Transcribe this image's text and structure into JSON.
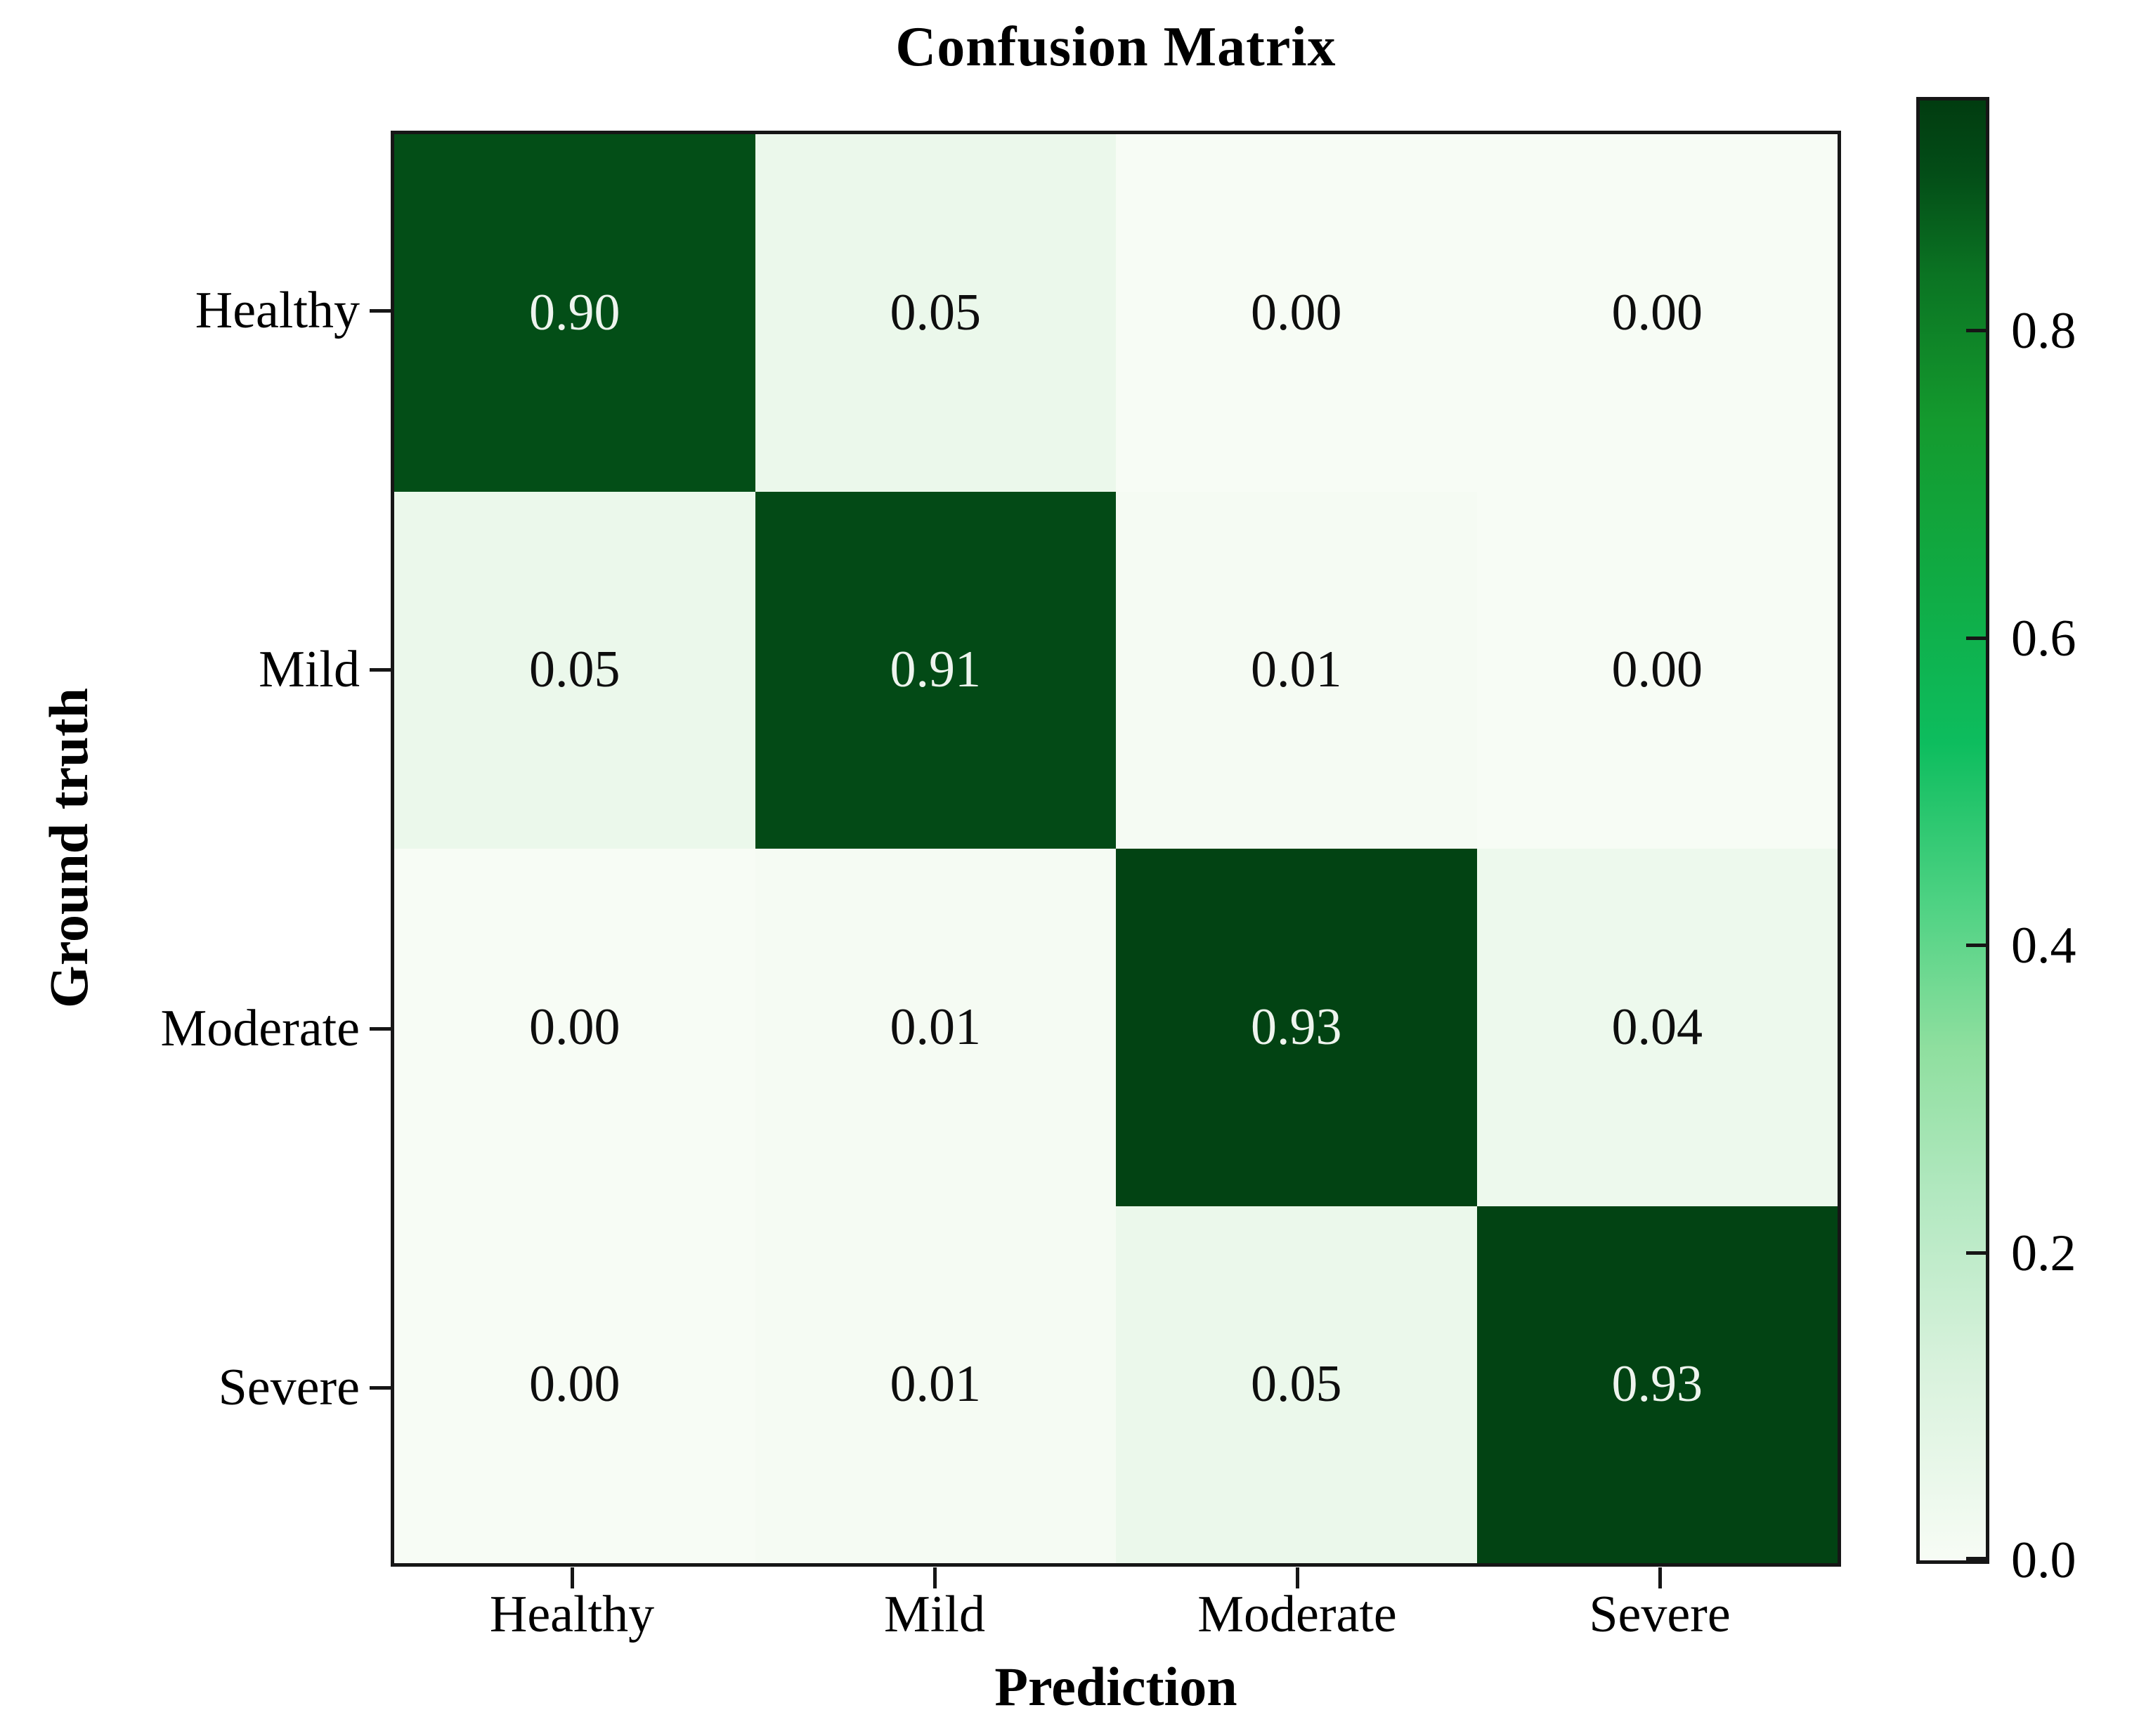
{
  "title": "Confusion Matrix",
  "chart_data": {
    "type": "heatmap",
    "title": "Confusion Matrix",
    "xlabel": "Prediction",
    "ylabel": "Ground truth",
    "x_categories": [
      "Healthy",
      "Mild",
      "Moderate",
      "Severe"
    ],
    "y_categories": [
      "Healthy",
      "Mild",
      "Moderate",
      "Severe"
    ],
    "matrix": [
      [
        0.9,
        0.05,
        0.0,
        0.0
      ],
      [
        0.05,
        0.91,
        0.01,
        0.0
      ],
      [
        0.0,
        0.01,
        0.93,
        0.04
      ],
      [
        0.0,
        0.01,
        0.05,
        0.93
      ]
    ],
    "value_decimals": 2,
    "vmax": 0.95,
    "grid": false,
    "colorbar": {
      "position": "right",
      "ticks": [
        0.0,
        0.2,
        0.4,
        0.6,
        0.8
      ],
      "tick_decimals": 1,
      "range": [
        0.0,
        0.95
      ]
    },
    "colormap": {
      "name": "white-to-dark-green",
      "stops": [
        {
          "t": 0.0,
          "c": "#f7fcf5"
        },
        {
          "t": 0.13,
          "c": "#d9f2dd"
        },
        {
          "t": 0.25,
          "c": "#b2e8c0"
        },
        {
          "t": 0.35,
          "c": "#8fdf9f"
        },
        {
          "t": 0.45,
          "c": "#4ed283"
        },
        {
          "t": 0.56,
          "c": "#0dbd5e"
        },
        {
          "t": 0.67,
          "c": "#10ab44"
        },
        {
          "t": 0.78,
          "c": "#149a2e"
        },
        {
          "t": 0.88,
          "c": "#0b7423"
        },
        {
          "t": 0.95,
          "c": "#034d17"
        },
        {
          "t": 1.0,
          "c": "#013c10"
        }
      ]
    }
  },
  "colors": {
    "cell_text_light": "#eef4ee",
    "cell_text_dark": "#0e0e0e",
    "axis_line": "#161616",
    "background": "#ffffff"
  }
}
